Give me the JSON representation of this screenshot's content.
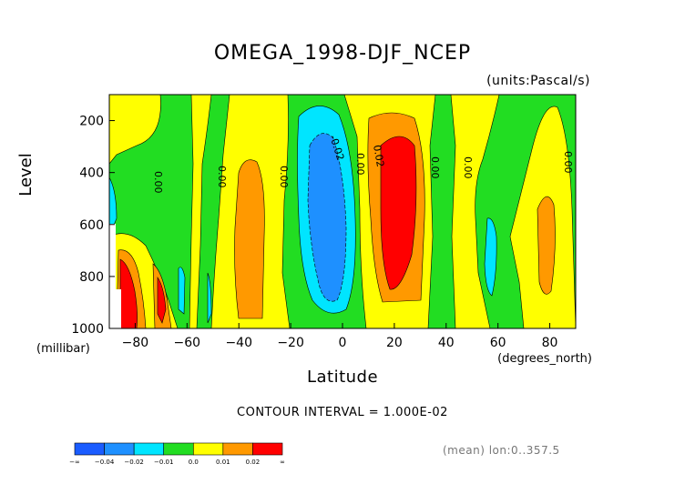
{
  "chart_data": {
    "type": "contour",
    "title": "OMEGA_1998-DJF_NCEP",
    "units_label": "(units:Pascal/s)",
    "ylabel": "Level",
    "ylabel_unit": "(millibar)",
    "xlabel": "Latitude",
    "xlabel_unit": "(degrees_north)",
    "xlim": [
      -90,
      90
    ],
    "ylim": [
      1000,
      100
    ],
    "x_ticks": [
      -80,
      -60,
      -40,
      -20,
      0,
      20,
      40,
      60,
      80
    ],
    "y_ticks": [
      200,
      400,
      600,
      800,
      1000
    ],
    "contour_interval_text": "CONTOUR INTERVAL = 1.000E-02",
    "footer_text": "(mean) lon:0..357.5",
    "contour_labels": [
      "0.00",
      "0.00",
      "0.00",
      "-0.02",
      "0.00",
      "0.02",
      "0.00",
      "0.00",
      "0.00"
    ],
    "color_scale": {
      "labels": [
        "-∞",
        "-0.04",
        "-0.02",
        "-0.01",
        "0.0",
        "0.01",
        "0.02",
        "∞"
      ],
      "colors": [
        "#1a5cff",
        "#1e90ff",
        "#00e5ff",
        "#22dd22",
        "#ffff00",
        "#ff9900",
        "#ff0000"
      ]
    }
  }
}
